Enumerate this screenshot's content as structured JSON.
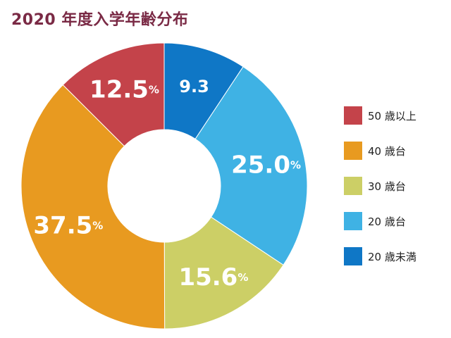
{
  "title": "2020 年度入学年齢分布",
  "chart_data": {
    "type": "pie",
    "title": "2020 年度入学年齢分布",
    "donut": true,
    "legend_position": "right",
    "slices": [
      {
        "label": "20 歳未満",
        "value": 9.3,
        "display": "9.3",
        "unit": "",
        "color": "#0f77c6"
      },
      {
        "label": "20 歳台",
        "value": 25.0,
        "display": "25.0",
        "unit": "%",
        "color": "#3fb2e4"
      },
      {
        "label": "30 歳台",
        "value": 15.6,
        "display": "15.6",
        "unit": "%",
        "color": "#cccf66"
      },
      {
        "label": "40 歳台",
        "value": 37.5,
        "display": "37.5",
        "unit": "%",
        "color": "#e89a20"
      },
      {
        "label": "50 歳以上",
        "value": 12.5,
        "display": "12.5",
        "unit": "%",
        "color": "#c4434a"
      }
    ],
    "legend_order": [
      "50 歳以上",
      "40 歳台",
      "30 歳台",
      "20 歳台",
      "20 歳未満"
    ]
  }
}
